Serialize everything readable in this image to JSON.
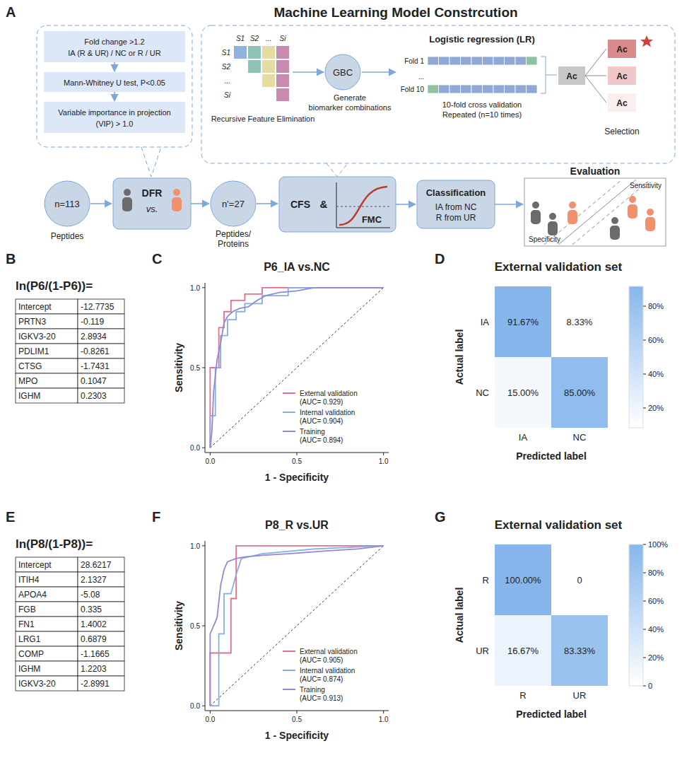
{
  "diagram": {
    "letter": "A",
    "title": "Machine Learning Model Constrcution",
    "filter_steps": [
      {
        "lines": [
          "Fold change >1.2",
          "IA (R & UR) / NC or R / UR"
        ]
      },
      {
        "lines": [
          "Mann-Whitney U test, P<0.05"
        ]
      },
      {
        "lines": [
          "Variable importance in projection",
          "(VIP) > 1.0"
        ]
      }
    ],
    "rfe": {
      "labels": [
        "S1",
        "S2",
        "...",
        "Si"
      ],
      "caption": "Recursive Feature Elimination"
    },
    "gbc": {
      "label": "GBC",
      "caption": [
        "Generate",
        "biomarker combinations"
      ]
    },
    "lr": {
      "title": "Logistic regression (LR)",
      "folds": [
        "Fold 1",
        "...",
        "Fold 10"
      ],
      "caption": [
        "10-fold cross validation",
        "Repeated (n=10 times)"
      ]
    },
    "selection": {
      "label": "Ac",
      "caption": "Selection"
    },
    "flow": {
      "input": {
        "value": "n=113",
        "caption": "Peptides"
      },
      "dfr": {
        "label": "DFR",
        "vs": "vs."
      },
      "selected": {
        "value": "n'=27",
        "caption": [
          "Peptides/",
          "Proteins"
        ]
      },
      "cfs": {
        "label": "CFS",
        "and": "&",
        "curve": "FMC"
      },
      "classification": {
        "title": "Classification",
        "lines": [
          "IA from NC",
          "R from UR"
        ]
      },
      "evaluation": {
        "title": "Evaluation",
        "sensitivity": "Sensitivity",
        "specificity": "Specificity"
      }
    }
  },
  "tables": [
    {
      "letter": "B",
      "title": "ln(P6/(1-P6))=",
      "rows": [
        [
          "Intercept",
          -12.7735
        ],
        [
          "PRTN3",
          -0.119
        ],
        [
          "IGKV3-20",
          2.8934
        ],
        [
          "PDLIM1",
          -0.8261
        ],
        [
          "CTSG",
          -1.7431
        ],
        [
          "MPO",
          0.1047
        ],
        [
          "IGHM",
          0.2303
        ]
      ]
    },
    {
      "letter": "E",
      "title": "ln(P8/(1-P8))=",
      "rows": [
        [
          "Intercept",
          28.6217
        ],
        [
          "ITIH4",
          2.1327
        ],
        [
          "APOA4",
          -5.08
        ],
        [
          "FGB",
          0.335
        ],
        [
          "FN1",
          1.4002
        ],
        [
          "LRG1",
          0.6879
        ],
        [
          "COMP",
          -1.1665
        ],
        [
          "IGHM",
          1.2203
        ],
        [
          "IGKV3-20",
          -2.8991
        ]
      ]
    }
  ],
  "chart_data": [
    {
      "type": "line",
      "letter": "C",
      "title": "P6_IA vs.NC",
      "x_label": "1 - Specificity",
      "y_label": "Sensitivity",
      "xlim": [
        -0.03,
        1.03
      ],
      "ylim": [
        -0.03,
        1.03
      ],
      "xticks": [
        {
          "value": 0,
          "label": "0.0"
        },
        {
          "value": 0.5,
          "label": "0.5"
        },
        {
          "value": 1,
          "label": "1.0"
        }
      ],
      "yticks": [
        {
          "value": 0,
          "label": "0.0"
        },
        {
          "value": 0.5,
          "label": "0.5"
        },
        {
          "value": 1,
          "label": "1.0"
        }
      ],
      "legend": "lower right",
      "reference": {
        "x": [
          0,
          1
        ],
        "values": [
          0,
          1
        ],
        "line_style": "dashed",
        "color": "#333333"
      },
      "series": [
        {
          "name": "External validation (AUC= 0.929)",
          "color": "#e0708f",
          "x": [
            0,
            0,
            0.05,
            0.05,
            0.08,
            0.08,
            0.12,
            0.12,
            0.2,
            0.2,
            0.3,
            0.3,
            1
          ],
          "values": [
            0,
            0.5,
            0.5,
            0.75,
            0.75,
            0.85,
            0.85,
            0.92,
            0.92,
            0.96,
            0.96,
            1,
            1
          ]
        },
        {
          "name": "Internal validation (AUC= 0.904)",
          "color": "#86aee0",
          "x": [
            0,
            0,
            0.03,
            0.03,
            0.06,
            0.06,
            0.1,
            0.1,
            0.15,
            0.15,
            0.2,
            0.2,
            0.3,
            0.3,
            0.45,
            0.45,
            1
          ],
          "values": [
            0,
            0.2,
            0.2,
            0.5,
            0.5,
            0.7,
            0.7,
            0.8,
            0.8,
            0.85,
            0.85,
            0.9,
            0.9,
            0.95,
            0.95,
            1,
            1
          ]
        },
        {
          "name": "Training (AUC= 0.894)",
          "color": "#9189d8",
          "x": [
            0,
            0.01,
            0.02,
            0.04,
            0.06,
            0.08,
            0.1,
            0.13,
            0.17,
            0.22,
            0.27,
            0.32,
            0.4,
            0.5,
            0.6,
            1
          ],
          "values": [
            0,
            0.1,
            0.35,
            0.55,
            0.65,
            0.78,
            0.82,
            0.85,
            0.87,
            0.88,
            0.92,
            0.95,
            0.97,
            0.98,
            1,
            1
          ]
        }
      ]
    },
    {
      "type": "heatmap",
      "letter": "D",
      "title": "External validation set",
      "x_label": "Predicted label",
      "y_label": "Actual label",
      "categories": [
        "IA",
        "NC"
      ],
      "values": [
        [
          91.67,
          8.33
        ],
        [
          15,
          85
        ]
      ],
      "value_labels": [
        [
          "91.67%",
          "8.33%"
        ],
        [
          "15.00%",
          "85.00%"
        ]
      ],
      "color": "#86b6ec",
      "colorbar_range": [
        8.33,
        91.67
      ],
      "colorbar_ticks": [
        {
          "value": 20,
          "label": "20%"
        },
        {
          "value": 40,
          "label": "40%"
        },
        {
          "value": 60,
          "label": "60%"
        },
        {
          "value": 80,
          "label": "80%"
        }
      ]
    },
    {
      "type": "line",
      "letter": "F",
      "title": "P8_R vs.UR",
      "x_label": "1 - Specificity",
      "y_label": "Sensitivity",
      "xlim": [
        -0.03,
        1.03
      ],
      "ylim": [
        -0.03,
        1.03
      ],
      "xticks": [
        {
          "value": 0,
          "label": "0.0"
        },
        {
          "value": 0.5,
          "label": "0.5"
        },
        {
          "value": 1,
          "label": "1.0"
        }
      ],
      "yticks": [
        {
          "value": 0,
          "label": "0.0"
        },
        {
          "value": 0.5,
          "label": "0.5"
        },
        {
          "value": 1,
          "label": "1.0"
        }
      ],
      "legend": "lower right",
      "reference": {
        "x": [
          0,
          1
        ],
        "values": [
          0,
          1
        ],
        "line_style": "dashed",
        "color": "#333333"
      },
      "series": [
        {
          "name": "External validation (AUC= 0.905)",
          "color": "#e0708f",
          "x": [
            0,
            0,
            0.12,
            0.12,
            0.15,
            0.15,
            1
          ],
          "values": [
            0,
            0.33,
            0.33,
            0.67,
            0.67,
            1,
            1
          ]
        },
        {
          "name": "Internal validation (AUC= 0.874)",
          "color": "#86aee0",
          "x": [
            0,
            0.05,
            0.05,
            0.08,
            0.08,
            0.12,
            0.15,
            0.18,
            0.3,
            0.5,
            0.6,
            1
          ],
          "values": [
            0,
            0,
            0.45,
            0.45,
            0.7,
            0.7,
            0.82,
            0.92,
            0.95,
            0.97,
            0.98,
            1
          ]
        },
        {
          "name": "Training (AUC= 0.913)",
          "color": "#9189d8",
          "x": [
            0,
            0,
            0.04,
            0.06,
            0.08,
            0.1,
            0.15,
            0.2,
            0.3,
            0.45,
            0.7,
            0.85,
            1
          ],
          "values": [
            0,
            0.45,
            0.55,
            0.75,
            0.85,
            0.9,
            0.92,
            0.93,
            0.94,
            0.95,
            0.97,
            0.98,
            1
          ]
        }
      ]
    },
    {
      "type": "heatmap",
      "letter": "G",
      "title": "External validation set",
      "x_label": "Predicted label",
      "y_label": "Actual label",
      "categories": [
        "R",
        "UR"
      ],
      "values": [
        [
          100,
          0
        ],
        [
          16.67,
          83.33
        ]
      ],
      "value_labels": [
        [
          "100.00%",
          "0"
        ],
        [
          "16.67%",
          "83.33%"
        ]
      ],
      "color": "#86b6ec",
      "colorbar_range": [
        0,
        100
      ],
      "colorbar_ticks": [
        0,
        {
          "value": 20,
          "label": "20%"
        },
        {
          "value": 40,
          "label": "40%"
        },
        {
          "value": 60,
          "label": "60%"
        },
        {
          "value": 80,
          "label": "80%"
        },
        {
          "value": 100,
          "label": "100%"
        }
      ]
    }
  ]
}
